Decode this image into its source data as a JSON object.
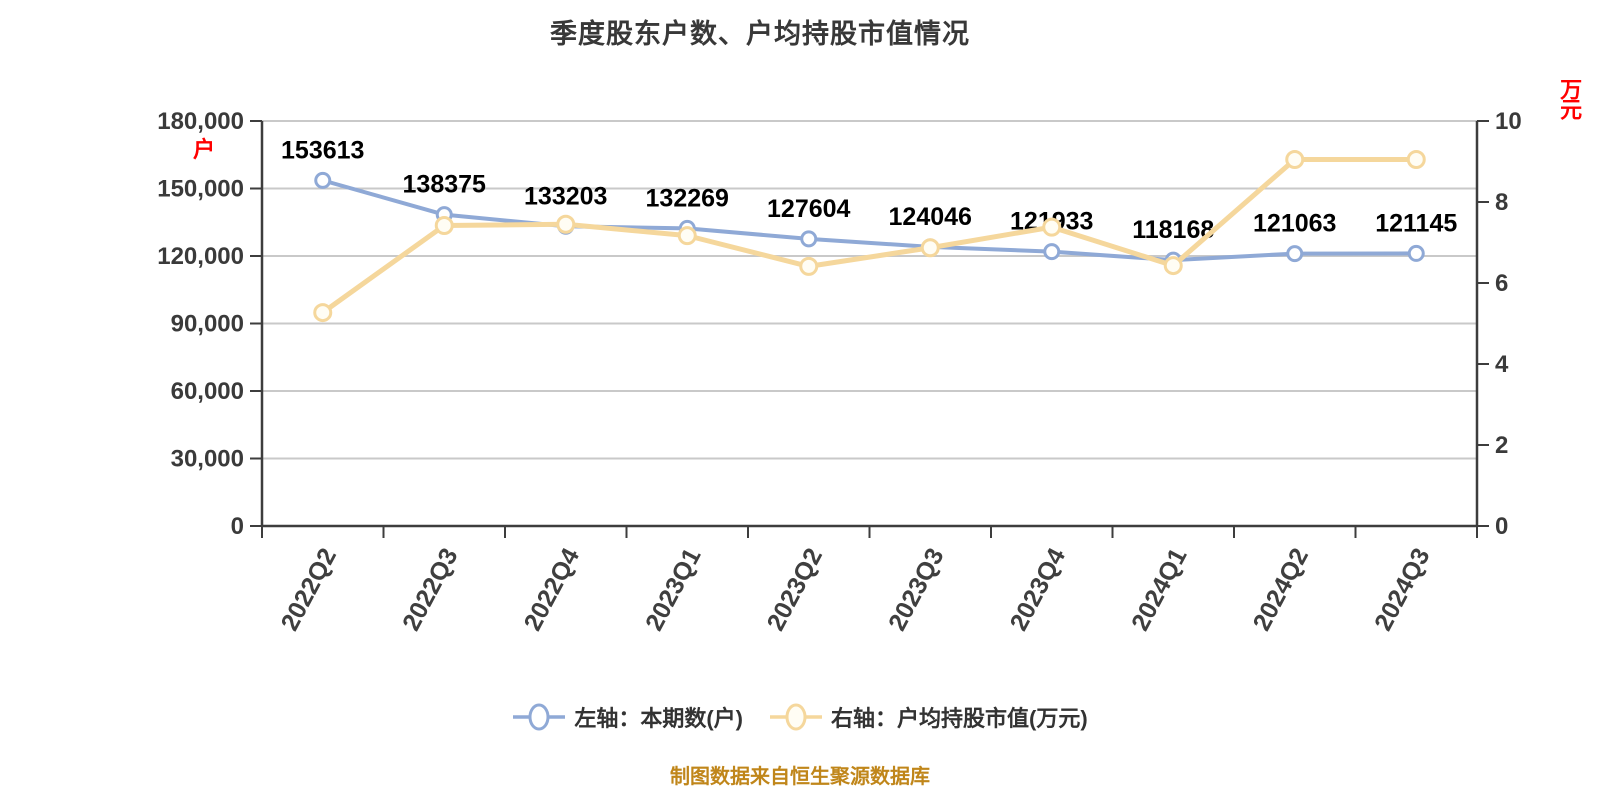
{
  "header": {
    "title": "季度股东户数、户均持股市值情况"
  },
  "footer": {
    "source_note": "制图数据来自恒生聚源数据库",
    "color": "#c0861a"
  },
  "colors": {
    "grid": "#c9c9c9",
    "axis": "#3d3d3d",
    "tick_label": "#3a3a3a",
    "data_label": "#000000",
    "blue_series": "#8fa9d6",
    "yellow_series": "#f5d79c",
    "axis_unit_red": "#ff0000"
  },
  "legend": [
    {
      "label": "左轴：本期数(户)",
      "color": "#8fa9d6",
      "marker_fill": "#ffffff"
    },
    {
      "label": "右轴：户均持股市值(万元)",
      "color": "#f5d79c",
      "marker_fill": "#fffdf4"
    }
  ],
  "axes": {
    "left": {
      "unit_label": "户",
      "unit_color": "#ff0000",
      "tick_values": [
        0,
        30000,
        60000,
        90000,
        120000,
        150000,
        180000
      ],
      "tick_labels": [
        "0",
        "30,000",
        "60,000",
        "90,000",
        "120,000",
        "150,000",
        "180,000"
      ]
    },
    "right": {
      "unit_label": "万元",
      "unit_color": "#ff0000",
      "tick_values": [
        0,
        2,
        4,
        6,
        8,
        10
      ],
      "tick_labels": [
        "0",
        "2",
        "4",
        "6",
        "8",
        "10"
      ]
    },
    "x": {
      "categories": [
        "2022Q2",
        "2022Q3",
        "2022Q4",
        "2023Q1",
        "2023Q2",
        "2023Q3",
        "2023Q4",
        "2024Q1",
        "2024Q2",
        "2024Q3"
      ]
    }
  },
  "chart_data": {
    "type": "line",
    "title": "季度股东户数、户均持股市值情况",
    "xlabel": "",
    "ylabel_left": "户",
    "ylabel_right": "万元",
    "grid": true,
    "legend_position": "bottom",
    "categories": [
      "2022Q2",
      "2022Q3",
      "2022Q4",
      "2023Q1",
      "2023Q2",
      "2023Q3",
      "2023Q4",
      "2024Q1",
      "2024Q2",
      "2024Q3"
    ],
    "ylim_left": [
      0,
      180000
    ],
    "ylim_right": [
      0,
      10
    ],
    "series": [
      {
        "name": "左轴：本期数(户)",
        "axis": "left",
        "color": "#8fa9d6",
        "line_width": 4,
        "marker_r": 7,
        "marker_fill": "#ffffff",
        "show_labels": true,
        "values": [
          153613,
          138375,
          133203,
          132269,
          127604,
          124046,
          121933,
          118168,
          121063,
          121145
        ]
      },
      {
        "name": "右轴：户均持股市值(万元)",
        "axis": "right",
        "color": "#f5d79c",
        "line_width": 5,
        "marker_r": 8,
        "marker_fill": "#fffdf4",
        "show_labels": false,
        "values": [
          5.27,
          7.42,
          7.45,
          7.17,
          6.41,
          6.87,
          7.38,
          6.43,
          9.05,
          9.05
        ]
      }
    ]
  }
}
